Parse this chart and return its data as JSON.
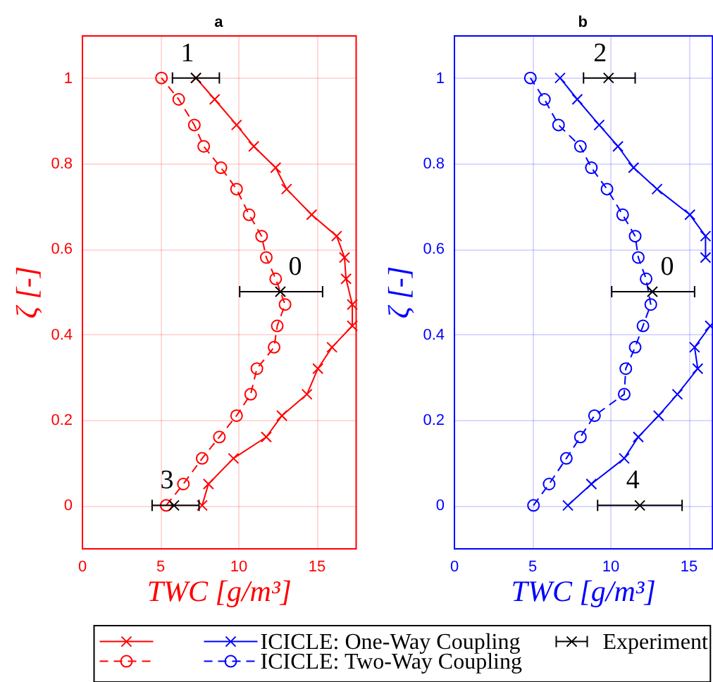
{
  "chart_data": [
    {
      "type": "line",
      "title": "a",
      "xlabel": "TWC [g/m³]",
      "ylabel": "ζ [-]",
      "xlim": [
        0,
        17.5
      ],
      "ylim": [
        -0.1,
        1.1
      ],
      "xticks": [
        0,
        5,
        10,
        15
      ],
      "yticks": [
        0,
        0.2,
        0.4,
        0.6,
        0.8,
        1
      ],
      "grid": true,
      "series": [
        {
          "color": "#ff0000",
          "marker": "cross",
          "line_style": "solid",
          "x": [
            7.7,
            8.1,
            9.7,
            11.8,
            12.8,
            14.4,
            15.1,
            16.0,
            17.3,
            17.3,
            16.9,
            16.8,
            16.3,
            14.7,
            13.1,
            12.4,
            11.0,
            9.9,
            8.5,
            7.3
          ],
          "values": [
            0,
            0.05,
            0.11,
            0.16,
            0.21,
            0.26,
            0.32,
            0.37,
            0.42,
            0.47,
            0.53,
            0.58,
            0.63,
            0.68,
            0.74,
            0.79,
            0.84,
            0.89,
            0.95,
            1
          ]
        },
        {
          "color": "#ff0000",
          "marker": "circle",
          "line_style": "dashed",
          "x": [
            5.4,
            6.5,
            7.7,
            8.8,
            9.9,
            10.8,
            11.2,
            12.3,
            12.5,
            13.0,
            12.4,
            11.8,
            11.5,
            10.7,
            9.9,
            8.9,
            7.8,
            7.2,
            6.2,
            5.1
          ],
          "values": [
            0,
            0.05,
            0.11,
            0.16,
            0.21,
            0.26,
            0.32,
            0.37,
            0.42,
            0.47,
            0.53,
            0.58,
            0.63,
            0.68,
            0.74,
            0.79,
            0.84,
            0.89,
            0.95,
            1
          ]
        },
        {
          "type": "scatter",
          "color": "#000000",
          "marker": "cross",
          "x": [
            7.3,
            12.7,
            5.9
          ],
          "values": [
            1,
            0.5,
            0
          ],
          "xerrors": [
            [
              5.8,
              8.8
            ],
            [
              10.1,
              15.4
            ],
            [
              4.5,
              7.5
            ]
          ]
        }
      ],
      "annotations": [
        {
          "text": "1",
          "x": 7.3,
          "y": 1
        },
        {
          "text": "0",
          "x": 12.7,
          "y": 0.5
        },
        {
          "text": "3",
          "x": 5.9,
          "y": 0
        }
      ]
    },
    {
      "type": "line",
      "title": "b",
      "xlabel": "TWC [g/m³]",
      "ylabel": "ζ [-]",
      "xlim": [
        0,
        16.5
      ],
      "ylim": [
        -0.1,
        1.1
      ],
      "xticks": [
        0,
        5,
        10,
        15
      ],
      "yticks": [
        0,
        0.2,
        0.4,
        0.6,
        0.8,
        1
      ],
      "grid": true,
      "legend": "bottom",
      "series": [
        {
          "name": "ICICLE: One-Way Coupling",
          "color": "#0000ff",
          "marker": "cross",
          "line_style": "solid",
          "x": [
            7.3,
            8.8,
            10.9,
            11.8,
            13.1,
            14.3,
            15.6,
            15.4,
            16.4,
            null,
            null,
            16.1,
            16.1,
            15.1,
            13.0,
            11.5,
            10.5,
            9.3,
            7.9,
            6.8
          ],
          "values": [
            0,
            0.05,
            0.11,
            0.16,
            0.21,
            0.26,
            0.32,
            0.37,
            0.42,
            null,
            null,
            0.58,
            0.63,
            0.68,
            0.74,
            0.79,
            0.84,
            0.89,
            0.95,
            1
          ]
        },
        {
          "name": "ICICLE: Two-Way Coupling",
          "color": "#0000ff",
          "marker": "circle",
          "line_style": "dashed",
          "x": [
            5.1,
            6.1,
            7.2,
            8.1,
            9.0,
            10.9,
            11.0,
            11.6,
            12.1,
            12.6,
            12.3,
            11.8,
            11.6,
            10.8,
            9.8,
            8.8,
            8.1,
            6.7,
            5.8,
            4.9
          ],
          "values": [
            0,
            0.05,
            0.11,
            0.16,
            0.21,
            0.26,
            0.32,
            0.37,
            0.42,
            0.47,
            0.53,
            0.58,
            0.63,
            0.68,
            0.74,
            0.79,
            0.84,
            0.89,
            0.95,
            1
          ]
        },
        {
          "name": "Experiment",
          "type": "scatter",
          "color": "#000000",
          "marker": "cross",
          "x": [
            9.9,
            12.7,
            11.9
          ],
          "values": [
            1,
            0.5,
            0
          ],
          "xerrors": [
            [
              8.3,
              11.6
            ],
            [
              10.1,
              15.4
            ],
            [
              9.2,
              14.6
            ]
          ]
        }
      ],
      "annotations": [
        {
          "text": "2",
          "x": 9.9,
          "y": 1
        },
        {
          "text": "0",
          "x": 12.7,
          "y": 0.5
        },
        {
          "text": "4",
          "x": 11.9,
          "y": 0
        }
      ]
    }
  ]
}
